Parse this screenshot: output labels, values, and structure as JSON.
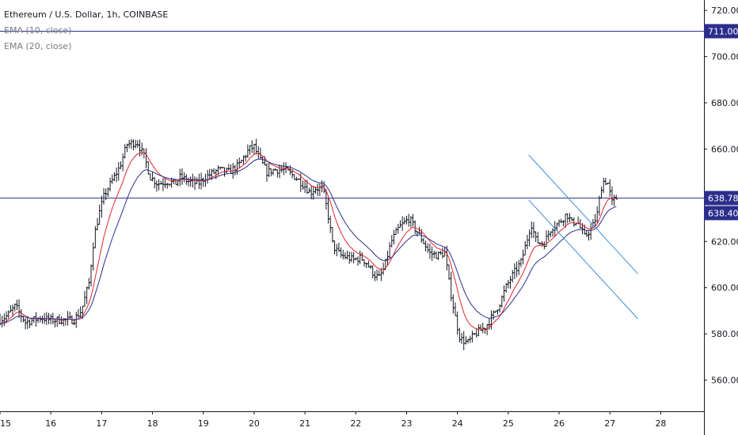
{
  "chart_data": {
    "type": "candlestick",
    "title": "Ethereum / U.S. Dollar, 1h, COINBASE",
    "indicators": [
      {
        "name": "EMA (10, close)",
        "color": "#e3262b"
      },
      {
        "name": "EMA (20, close)",
        "color": "#2b2e8c"
      }
    ],
    "x_ticks": [
      "15",
      "16",
      "17",
      "18",
      "19",
      "20",
      "21",
      "22",
      "23",
      "24",
      "25",
      "26",
      "27",
      "28"
    ],
    "xlim": [
      15,
      28.85
    ],
    "y_ticks": [
      "720.00",
      "700.00",
      "680.00",
      "660.00",
      "640.00",
      "620.00",
      "600.00",
      "580.00",
      "560.00"
    ],
    "ylim": [
      546.5,
      724.5
    ],
    "horizontal_lines": [
      {
        "value": 711.0,
        "label": "711.00",
        "color": "#2b2e8c"
      },
      {
        "value": 638.78,
        "label": "638.78",
        "color": "#2b2e8c"
      }
    ],
    "price_tags": [
      {
        "value": 638.4,
        "label": "638.40",
        "color": "#2b2e8c"
      }
    ],
    "trend_lines": [
      {
        "x1": 25.4,
        "y1": 657.5,
        "x2": 27.55,
        "y2": 606.0,
        "color": "#3d8fd6"
      },
      {
        "x1": 25.4,
        "y1": 638.0,
        "x2": 27.55,
        "y2": 586.5,
        "color": "#3d8fd6"
      }
    ],
    "price_path": [
      [
        15.0,
        586
      ],
      [
        15.15,
        588
      ],
      [
        15.3,
        592
      ],
      [
        15.5,
        585
      ],
      [
        15.8,
        587
      ],
      [
        16.0,
        586
      ],
      [
        16.2,
        586
      ],
      [
        16.45,
        586
      ],
      [
        16.6,
        590
      ],
      [
        16.75,
        602
      ],
      [
        16.85,
        622
      ],
      [
        16.95,
        632
      ],
      [
        17.05,
        640
      ],
      [
        17.2,
        646
      ],
      [
        17.35,
        652
      ],
      [
        17.5,
        662
      ],
      [
        17.7,
        663
      ],
      [
        17.85,
        656
      ],
      [
        17.95,
        648
      ],
      [
        18.1,
        645
      ],
      [
        18.3,
        646
      ],
      [
        18.45,
        645
      ],
      [
        18.55,
        648
      ],
      [
        18.7,
        646
      ],
      [
        18.9,
        645
      ],
      [
        19.05,
        648
      ],
      [
        19.3,
        651
      ],
      [
        19.5,
        650
      ],
      [
        19.7,
        653
      ],
      [
        19.9,
        660
      ],
      [
        20.0,
        661
      ],
      [
        20.1,
        656
      ],
      [
        20.25,
        650
      ],
      [
        20.4,
        651
      ],
      [
        20.6,
        651
      ],
      [
        20.8,
        648
      ],
      [
        20.9,
        646
      ],
      [
        21.0,
        644
      ],
      [
        21.1,
        641
      ],
      [
        21.2,
        643
      ],
      [
        21.35,
        643
      ],
      [
        21.45,
        632
      ],
      [
        21.55,
        618
      ],
      [
        21.7,
        614
      ],
      [
        21.85,
        613
      ],
      [
        21.95,
        612
      ],
      [
        22.1,
        613
      ],
      [
        22.2,
        611
      ],
      [
        22.35,
        606
      ],
      [
        22.45,
        604
      ],
      [
        22.55,
        608
      ],
      [
        22.7,
        620
      ],
      [
        22.85,
        626
      ],
      [
        22.95,
        628
      ],
      [
        23.05,
        630
      ],
      [
        23.15,
        626
      ],
      [
        23.3,
        621
      ],
      [
        23.45,
        615
      ],
      [
        23.6,
        614
      ],
      [
        23.75,
        615
      ],
      [
        23.85,
        600
      ],
      [
        23.95,
        588
      ],
      [
        24.05,
        578
      ],
      [
        24.2,
        576
      ],
      [
        24.35,
        580
      ],
      [
        24.55,
        583
      ],
      [
        24.7,
        588
      ],
      [
        24.85,
        594
      ],
      [
        24.95,
        600
      ],
      [
        25.1,
        606
      ],
      [
        25.25,
        611
      ],
      [
        25.35,
        619
      ],
      [
        25.45,
        628
      ],
      [
        25.55,
        620
      ],
      [
        25.7,
        619
      ],
      [
        25.85,
        626
      ],
      [
        26.0,
        628
      ],
      [
        26.15,
        632
      ],
      [
        26.25,
        628
      ],
      [
        26.35,
        629
      ],
      [
        26.5,
        622
      ],
      [
        26.65,
        626
      ],
      [
        26.75,
        632
      ],
      [
        26.85,
        646
      ],
      [
        26.95,
        646
      ],
      [
        27.05,
        636
      ],
      [
        27.1,
        639
      ],
      [
        27.15,
        638.4
      ]
    ]
  }
}
